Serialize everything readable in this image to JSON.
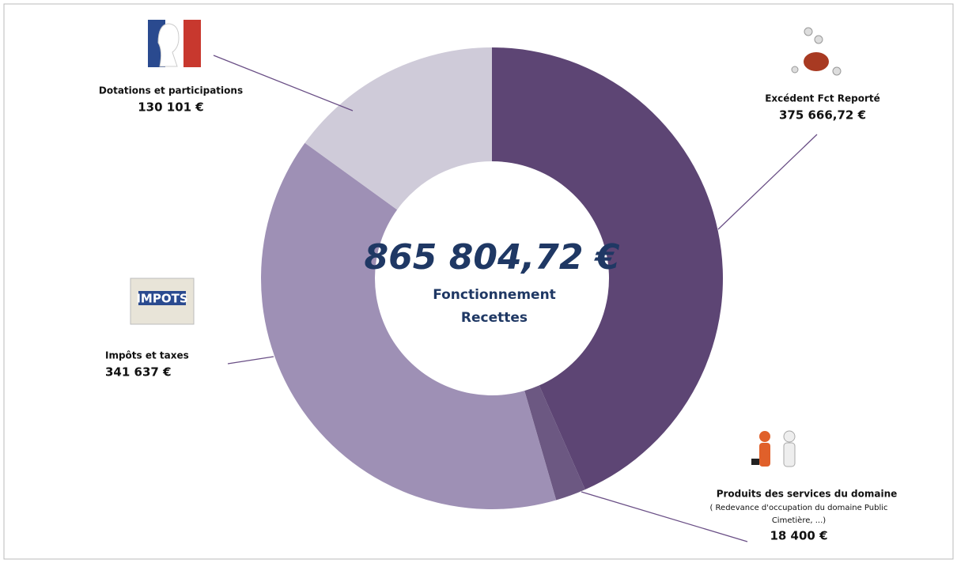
{
  "chart_data": {
    "type": "donut",
    "center_value_label": "865 804,72 €",
    "center_text": [
      "Fonctionnement",
      "Recettes"
    ],
    "categories": [
      "Excédent Fct  Reporté",
      "Produits des services du domaine",
      "Impôts et taxes",
      "Dotations et participations"
    ],
    "values": [
      375666.72,
      18400,
      341637,
      130101
    ],
    "value_labels": [
      "375 666,72 €",
      "18 400 €",
      "341 637 €",
      "130 101 €"
    ],
    "colors": [
      "#5d4574",
      "#6c5882",
      "#9e90b5",
      "#cfcbd9"
    ],
    "note": [
      "( Redevance d'occupation du domaine Public",
      "Cimetière, ...)"
    ]
  }
}
